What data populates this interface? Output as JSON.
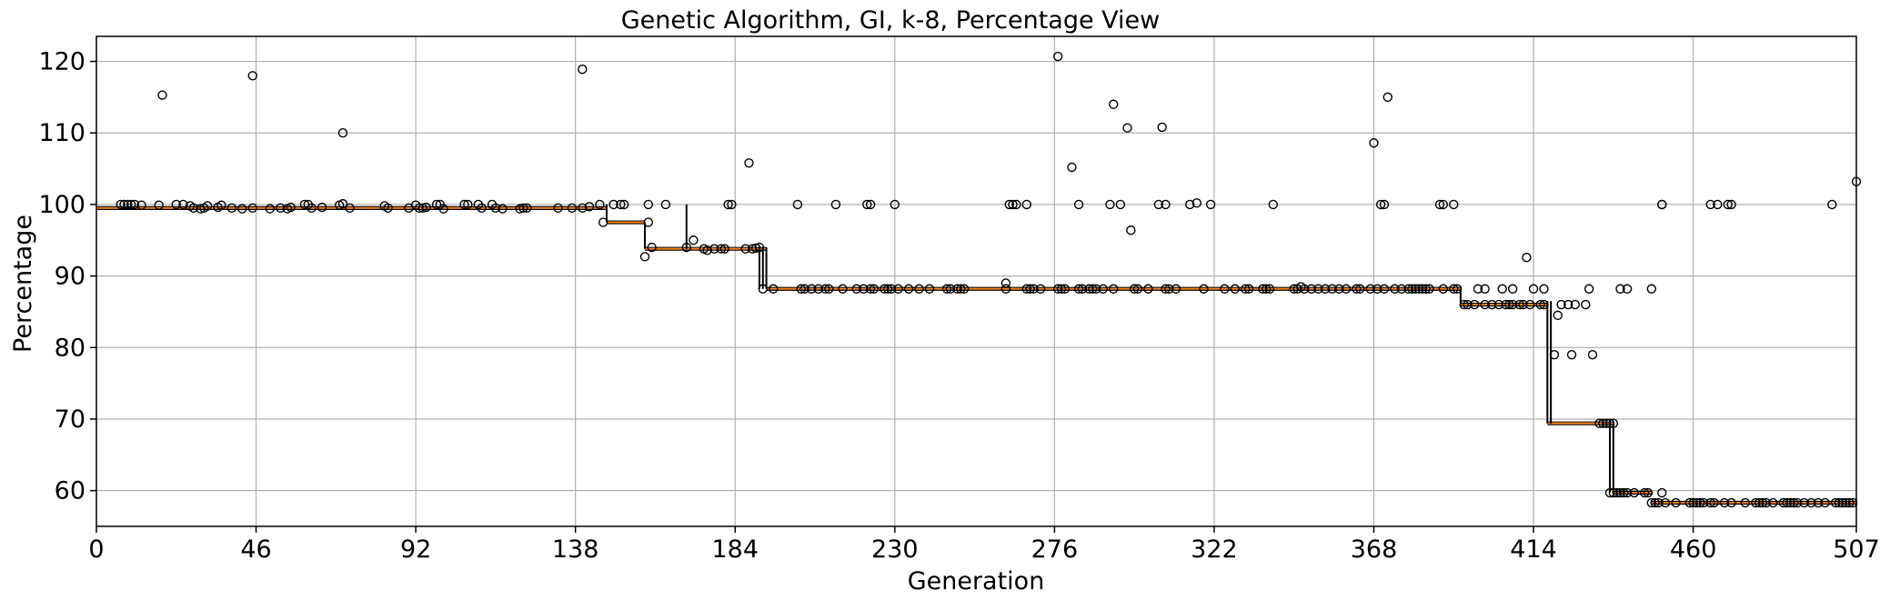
{
  "chart_data": {
    "type": "box",
    "title": "Genetic Algorithm, GI, k-8, Percentage View",
    "xlabel": "Generation",
    "ylabel": "Percentage",
    "xlim": [
      0,
      507
    ],
    "ylim": [
      55,
      123.5
    ],
    "x_ticks": [
      0,
      46,
      92,
      138,
      184,
      230,
      276,
      322,
      368,
      414,
      460,
      507
    ],
    "y_ticks": [
      60,
      70,
      80,
      90,
      100,
      110,
      120
    ],
    "grid": true,
    "median_steps": [
      {
        "from": 0,
        "to": 147,
        "value": 99.5
      },
      {
        "from": 147,
        "to": 158,
        "value": 97.5
      },
      {
        "from": 158,
        "to": 193,
        "value": 93.8
      },
      {
        "from": 193,
        "to": 393,
        "value": 88.2
      },
      {
        "from": 393,
        "to": 418,
        "value": 86.0
      },
      {
        "from": 418,
        "to": 437,
        "value": 69.4
      },
      {
        "from": 437,
        "to": 448,
        "value": 59.7
      },
      {
        "from": 448,
        "to": 507,
        "value": 58.3
      }
    ],
    "whiskers": [
      {
        "x": 147,
        "low": 97.5,
        "high": 100
      },
      {
        "x": 158,
        "low": 93.8,
        "high": 97.5
      },
      {
        "x": 170,
        "low": 93.8,
        "high": 100
      },
      {
        "x": 191,
        "low": 88.2,
        "high": 94
      },
      {
        "x": 192,
        "low": 88.2,
        "high": 94
      },
      {
        "x": 193,
        "low": 88.2,
        "high": 94
      },
      {
        "x": 393,
        "low": 86,
        "high": 88.2
      },
      {
        "x": 418,
        "low": 69.4,
        "high": 86.5
      },
      {
        "x": 419,
        "low": 69.4,
        "high": 86.5
      },
      {
        "x": 436,
        "low": 59.7,
        "high": 69.4
      },
      {
        "x": 437,
        "low": 59.7,
        "high": 69.4
      }
    ],
    "outliers": [
      [
        7,
        100
      ],
      [
        8,
        100
      ],
      [
        9,
        100
      ],
      [
        10,
        100
      ],
      [
        11,
        100
      ],
      [
        13,
        99.9
      ],
      [
        19,
        115.3
      ],
      [
        18,
        99.9
      ],
      [
        23,
        100
      ],
      [
        25,
        100
      ],
      [
        27,
        99.8
      ],
      [
        28,
        99.5
      ],
      [
        30,
        99.4
      ],
      [
        31,
        99.5
      ],
      [
        32,
        99.8
      ],
      [
        35,
        99.6
      ],
      [
        36,
        99.9
      ],
      [
        39,
        99.5
      ],
      [
        42,
        99.4
      ],
      [
        45,
        99.5
      ],
      [
        45,
        118
      ],
      [
        50,
        99.4
      ],
      [
        53,
        99.5
      ],
      [
        55,
        99.4
      ],
      [
        56,
        99.6
      ],
      [
        60,
        100
      ],
      [
        61,
        100
      ],
      [
        62,
        99.5
      ],
      [
        65,
        99.6
      ],
      [
        70,
        99.9
      ],
      [
        71,
        100.1
      ],
      [
        71,
        110
      ],
      [
        73,
        99.5
      ],
      [
        83,
        99.8
      ],
      [
        84,
        99.5
      ],
      [
        90,
        99.5
      ],
      [
        92,
        99.9
      ],
      [
        93,
        99.5
      ],
      [
        94,
        99.5
      ],
      [
        95,
        99.6
      ],
      [
        98,
        100
      ],
      [
        99,
        100
      ],
      [
        100,
        99.4
      ],
      [
        106,
        100
      ],
      [
        107,
        100
      ],
      [
        110,
        100
      ],
      [
        111,
        99.5
      ],
      [
        114,
        100
      ],
      [
        115,
        99.5
      ],
      [
        117,
        99.4
      ],
      [
        122,
        99.4
      ],
      [
        123,
        99.5
      ],
      [
        124,
        99.5
      ],
      [
        133,
        99.5
      ],
      [
        137,
        99.5
      ],
      [
        140,
        99.5
      ],
      [
        142,
        99.7
      ],
      [
        140,
        118.9
      ],
      [
        145,
        100
      ],
      [
        146,
        97.5
      ],
      [
        149,
        100
      ],
      [
        151,
        100
      ],
      [
        152,
        100
      ],
      [
        159,
        100
      ],
      [
        159,
        97.5
      ],
      [
        158,
        92.7
      ],
      [
        160,
        94
      ],
      [
        164,
        100
      ],
      [
        170,
        94
      ],
      [
        172,
        95
      ],
      [
        175,
        93.8
      ],
      [
        176,
        93.6
      ],
      [
        178,
        93.8
      ],
      [
        180,
        93.8
      ],
      [
        181,
        93.8
      ],
      [
        182,
        100
      ],
      [
        183,
        100
      ],
      [
        187,
        93.8
      ],
      [
        188,
        105.8
      ],
      [
        189,
        93.8
      ],
      [
        190,
        93.9
      ],
      [
        191,
        94
      ],
      [
        192,
        88.2
      ],
      [
        195,
        88.2
      ],
      [
        202,
        100
      ],
      [
        203,
        88.2
      ],
      [
        204,
        88.2
      ],
      [
        206,
        88.2
      ],
      [
        208,
        88.2
      ],
      [
        210,
        88.2
      ],
      [
        211,
        88.2
      ],
      [
        213,
        100
      ],
      [
        215,
        88.2
      ],
      [
        219,
        88.2
      ],
      [
        221,
        88.2
      ],
      [
        222,
        100
      ],
      [
        223,
        100
      ],
      [
        223,
        88.2
      ],
      [
        224,
        88.2
      ],
      [
        227,
        88.2
      ],
      [
        228,
        88.2
      ],
      [
        229,
        88.2
      ],
      [
        230,
        100
      ],
      [
        231,
        88.2
      ],
      [
        234,
        88.2
      ],
      [
        237,
        88.2
      ],
      [
        240,
        88.2
      ],
      [
        245,
        88.2
      ],
      [
        246,
        88.2
      ],
      [
        248,
        88.2
      ],
      [
        249,
        88.2
      ],
      [
        250,
        88.2
      ],
      [
        262,
        89
      ],
      [
        262,
        88.2
      ],
      [
        263,
        100
      ],
      [
        264,
        100
      ],
      [
        265,
        100
      ],
      [
        268,
        100
      ],
      [
        268,
        88.2
      ],
      [
        269,
        88.2
      ],
      [
        270,
        88.2
      ],
      [
        272,
        88.2
      ],
      [
        277,
        120.7
      ],
      [
        277,
        88.2
      ],
      [
        278,
        88.2
      ],
      [
        279,
        88.2
      ],
      [
        281,
        105.2
      ],
      [
        283,
        100
      ],
      [
        283,
        88.2
      ],
      [
        284,
        88.2
      ],
      [
        286,
        88.2
      ],
      [
        287,
        88.2
      ],
      [
        288,
        88.2
      ],
      [
        290,
        88.2
      ],
      [
        292,
        100
      ],
      [
        293,
        114
      ],
      [
        293,
        88.2
      ],
      [
        295,
        100
      ],
      [
        297,
        110.7
      ],
      [
        298,
        96.4
      ],
      [
        299,
        88.2
      ],
      [
        300,
        88.2
      ],
      [
        303,
        88.2
      ],
      [
        306,
        100
      ],
      [
        307,
        110.8
      ],
      [
        308,
        100
      ],
      [
        308,
        88.2
      ],
      [
        309,
        88.2
      ],
      [
        311,
        88.2
      ],
      [
        315,
        100
      ],
      [
        317,
        100.2
      ],
      [
        319,
        88.2
      ],
      [
        321,
        100
      ],
      [
        325,
        88.2
      ],
      [
        328,
        88.2
      ],
      [
        331,
        88.2
      ],
      [
        332,
        88.2
      ],
      [
        336,
        88.2
      ],
      [
        337,
        88.2
      ],
      [
        338,
        88.2
      ],
      [
        339,
        100
      ],
      [
        345,
        88.2
      ],
      [
        346,
        88.2
      ],
      [
        347,
        88.5
      ],
      [
        348,
        88.2
      ],
      [
        350,
        88.2
      ],
      [
        352,
        88.2
      ],
      [
        354,
        88.2
      ],
      [
        356,
        88.2
      ],
      [
        358,
        88.2
      ],
      [
        360,
        88.2
      ],
      [
        363,
        88.2
      ],
      [
        364,
        88.2
      ],
      [
        367,
        88.2
      ],
      [
        368,
        108.6
      ],
      [
        369,
        88.2
      ],
      [
        370,
        100
      ],
      [
        371,
        100
      ],
      [
        372,
        115
      ],
      [
        371,
        88.2
      ],
      [
        374,
        88.2
      ],
      [
        376,
        88.2
      ],
      [
        378,
        88.2
      ],
      [
        379,
        88.2
      ],
      [
        380,
        88.2
      ],
      [
        381,
        88.2
      ],
      [
        382,
        88.2
      ],
      [
        383,
        88.2
      ],
      [
        384,
        88.2
      ],
      [
        387,
        100
      ],
      [
        388,
        100
      ],
      [
        388,
        88.2
      ],
      [
        391,
        100
      ],
      [
        391,
        88.2
      ],
      [
        392,
        88.2
      ],
      [
        394,
        86
      ],
      [
        395,
        86
      ],
      [
        397,
        86
      ],
      [
        398,
        88.2
      ],
      [
        400,
        86
      ],
      [
        400,
        88.2
      ],
      [
        402,
        86
      ],
      [
        404,
        86
      ],
      [
        405,
        88.2
      ],
      [
        406,
        86
      ],
      [
        407,
        86
      ],
      [
        408,
        88.2
      ],
      [
        408,
        86
      ],
      [
        410,
        86
      ],
      [
        411,
        86
      ],
      [
        412,
        92.6
      ],
      [
        413,
        86
      ],
      [
        414,
        88.2
      ],
      [
        416,
        86
      ],
      [
        417,
        88.2
      ],
      [
        417,
        86
      ],
      [
        420,
        79
      ],
      [
        421,
        84.5
      ],
      [
        422,
        86
      ],
      [
        424,
        86
      ],
      [
        425,
        79
      ],
      [
        426,
        86
      ],
      [
        429,
        86
      ],
      [
        430,
        88.2
      ],
      [
        431,
        79
      ],
      [
        433,
        69.4
      ],
      [
        434,
        69.4
      ],
      [
        435,
        69.4
      ],
      [
        436,
        69.4
      ],
      [
        437,
        69.4
      ],
      [
        439,
        88.2
      ],
      [
        441,
        88.2
      ],
      [
        436,
        59.7
      ],
      [
        437,
        59.7
      ],
      [
        438,
        59.7
      ],
      [
        439,
        59.7
      ],
      [
        440,
        59.7
      ],
      [
        441,
        59.7
      ],
      [
        443,
        59.7
      ],
      [
        446,
        59.7
      ],
      [
        447,
        59.7
      ],
      [
        448,
        88.2
      ],
      [
        448,
        58.3
      ],
      [
        449,
        58.3
      ],
      [
        450,
        58.3
      ],
      [
        451,
        59.7
      ],
      [
        451,
        100
      ],
      [
        451,
        100
      ],
      [
        452,
        58.3
      ],
      [
        455,
        58.3
      ],
      [
        459,
        58.3
      ],
      [
        460,
        58.3
      ],
      [
        461,
        58.3
      ],
      [
        462,
        58.3
      ],
      [
        463,
        58.3
      ],
      [
        465,
        58.3
      ],
      [
        465,
        100
      ],
      [
        466,
        58.3
      ],
      [
        467,
        100
      ],
      [
        469,
        58.3
      ],
      [
        470,
        100
      ],
      [
        471,
        100
      ],
      [
        471,
        58.3
      ],
      [
        475,
        58.3
      ],
      [
        478,
        58.3
      ],
      [
        479,
        58.3
      ],
      [
        480,
        58.3
      ],
      [
        481,
        58.3
      ],
      [
        483,
        58.3
      ],
      [
        486,
        58.3
      ],
      [
        487,
        58.3
      ],
      [
        488,
        58.3
      ],
      [
        489,
        58.3
      ],
      [
        490,
        58.3
      ],
      [
        492,
        58.3
      ],
      [
        494,
        58.3
      ],
      [
        496,
        58.3
      ],
      [
        498,
        58.3
      ],
      [
        500,
        100
      ],
      [
        501,
        58.3
      ],
      [
        502,
        58.3
      ],
      [
        503,
        58.3
      ],
      [
        504,
        58.3
      ],
      [
        505,
        58.3
      ],
      [
        506,
        58.3
      ],
      [
        507,
        103.2
      ]
    ]
  }
}
